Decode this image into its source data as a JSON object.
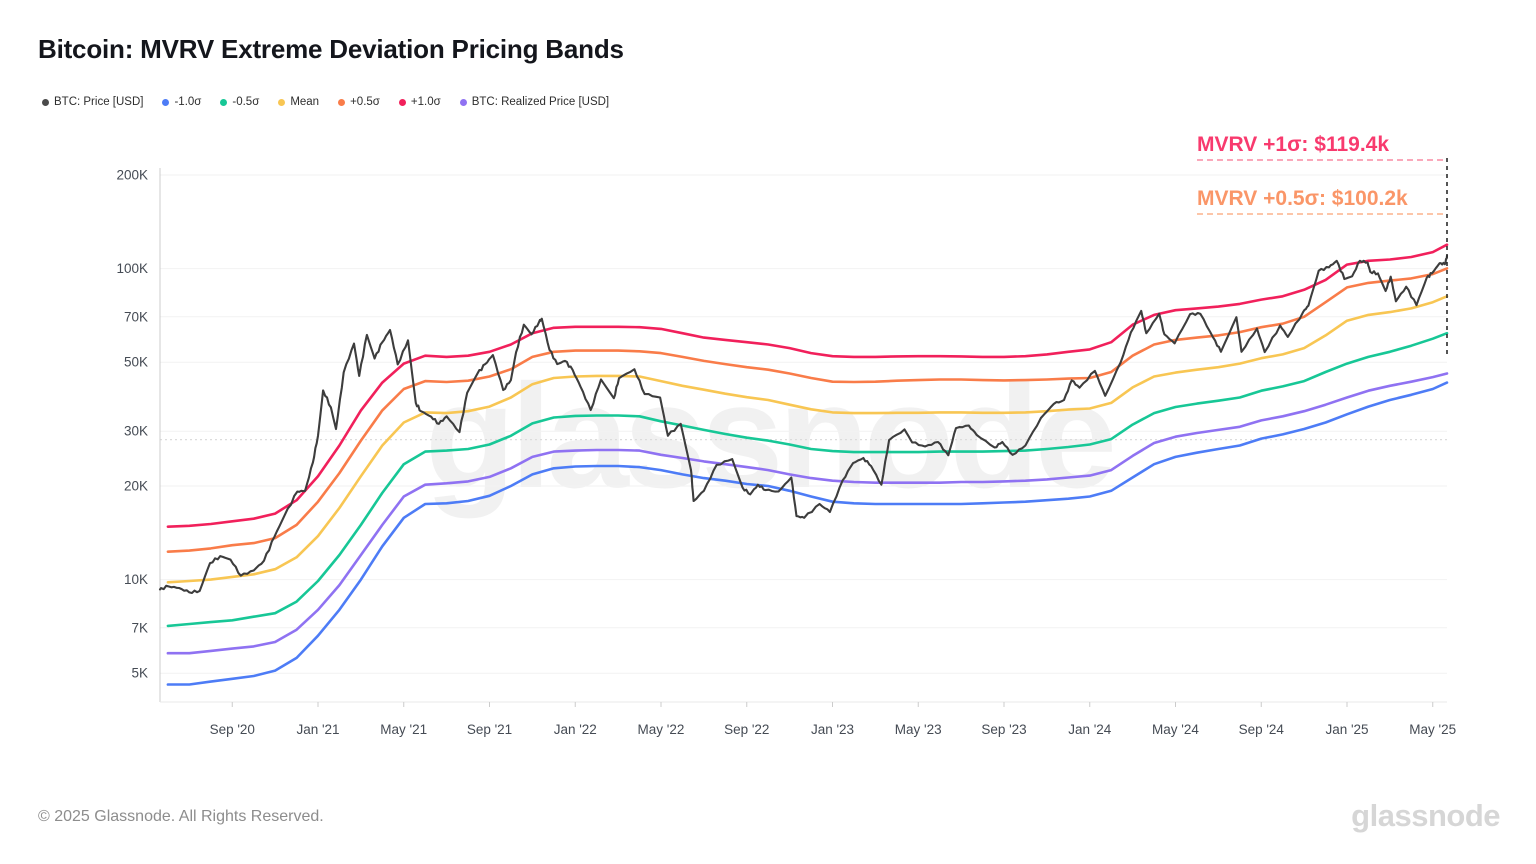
{
  "title": "Bitcoin: MVRV Extreme Deviation Pricing Bands",
  "watermark": "glassnode",
  "legend": [
    {
      "label": "BTC: Price [USD]",
      "color": "#4a4a4a"
    },
    {
      "label": "-1.0σ",
      "color": "#4d7cf6"
    },
    {
      "label": "-0.5σ",
      "color": "#17c796"
    },
    {
      "label": "Mean",
      "color": "#f8c653"
    },
    {
      "label": "+0.5σ",
      "color": "#f97c49"
    },
    {
      "label": "+1.0σ",
      "color": "#f1205b"
    },
    {
      "label": "BTC: Realized Price [USD]",
      "color": "#8f72f2"
    }
  ],
  "annotations": {
    "sigma1": {
      "text": "MVRV +1σ: $119.4k",
      "color": "#f83a6e",
      "dash_color": "#f88ca4",
      "value_k": 119.4
    },
    "sigma05": {
      "text": "MVRV +0.5σ: $100.2k",
      "color": "#fa9668",
      "dash_color": "#fbb28c",
      "value_k": 100.2
    }
  },
  "footer": {
    "copyright": "© 2025 Glassnode. All Rights Reserved.",
    "logo": "glassnode"
  },
  "chart_data": {
    "type": "line",
    "y_scale": "log",
    "y_unit": "USD (thousands)",
    "x_unit": "decimal_year",
    "xlim": [
      2020.386,
      2025.389
    ],
    "ylim_k": [
      3.9,
      210
    ],
    "grid": "horizontal-only",
    "dotted_gridline_k": 28.2,
    "y_ticks": [
      {
        "label": "200K",
        "value": 200
      },
      {
        "label": "100K",
        "value": 100
      },
      {
        "label": "70K",
        "value": 70
      },
      {
        "label": "50K",
        "value": 50
      },
      {
        "label": "30K",
        "value": 30
      },
      {
        "label": "20K",
        "value": 20
      },
      {
        "label": "10K",
        "value": 10
      },
      {
        "label": "7K",
        "value": 7
      },
      {
        "label": "5K",
        "value": 5
      }
    ],
    "x_ticks": [
      {
        "label": "Sep '20",
        "t": 2020.6667
      },
      {
        "label": "Jan '21",
        "t": 2021.0
      },
      {
        "label": "May '21",
        "t": 2021.3333
      },
      {
        "label": "Sep '21",
        "t": 2021.6667
      },
      {
        "label": "Jan '22",
        "t": 2022.0
      },
      {
        "label": "May '22",
        "t": 2022.3333
      },
      {
        "label": "Sep '22",
        "t": 2022.6667
      },
      {
        "label": "Jan '23",
        "t": 2023.0
      },
      {
        "label": "May '23",
        "t": 2023.3333
      },
      {
        "label": "Sep '23",
        "t": 2023.6667
      },
      {
        "label": "Jan '24",
        "t": 2024.0
      },
      {
        "label": "May '24",
        "t": 2024.3333
      },
      {
        "label": "Sep '24",
        "t": 2024.6667
      },
      {
        "label": "Jan '25",
        "t": 2025.0
      },
      {
        "label": "May '25",
        "t": 2025.3333
      }
    ],
    "bands_sampling": {
      "start": 2020.4167,
      "step": 0.0833333,
      "note": "monthly Jun 2020 - May 2025 plus final value at right edge"
    },
    "series": [
      {
        "name": "-1.0σ",
        "color": "#4d7cf6",
        "width": 2.6,
        "start": 2020.4167,
        "step": 0.0833333,
        "values": [
          4.6,
          4.6,
          4.7,
          4.8,
          4.9,
          5.1,
          5.6,
          6.6,
          8.0,
          10.0,
          12.8,
          15.8,
          17.5,
          17.6,
          17.9,
          18.6,
          20.0,
          21.8,
          22.8,
          23.1,
          23.2,
          23.2,
          23.0,
          22.5,
          21.8,
          21.2,
          20.8,
          20.3,
          20.0,
          19.3,
          18.5,
          17.8,
          17.6,
          17.5,
          17.5,
          17.5,
          17.5,
          17.5,
          17.6,
          17.7,
          17.8,
          18.0,
          18.2,
          18.5,
          19.3,
          21.3,
          23.5,
          24.8,
          25.6,
          26.3,
          27.0,
          28.4,
          29.3,
          30.5,
          32.0,
          34.0,
          36.0,
          37.8,
          39.3,
          41.0,
          43.0
        ]
      },
      {
        "name": "BTC: Realized Price [USD]",
        "color": "#8f72f2",
        "width": 2.6,
        "start": 2020.4167,
        "step": 0.0833333,
        "values": [
          5.8,
          5.8,
          5.9,
          6.0,
          6.1,
          6.3,
          6.9,
          8.0,
          9.6,
          12.0,
          15.0,
          18.5,
          20.2,
          20.4,
          20.7,
          21.4,
          22.8,
          24.8,
          25.8,
          26.0,
          26.1,
          26.1,
          26.0,
          25.2,
          24.6,
          24.0,
          23.5,
          23.0,
          22.5,
          21.8,
          21.2,
          20.8,
          20.6,
          20.5,
          20.5,
          20.5,
          20.5,
          20.6,
          20.6,
          20.7,
          20.8,
          21.0,
          21.3,
          21.6,
          22.5,
          25.0,
          27.5,
          28.8,
          29.6,
          30.3,
          31.0,
          32.5,
          33.5,
          34.8,
          36.5,
          38.5,
          40.5,
          42.0,
          43.3,
          44.8,
          46.0
        ]
      },
      {
        "name": "-0.5σ",
        "color": "#17c796",
        "width": 2.6,
        "start": 2020.4167,
        "step": 0.0833333,
        "values": [
          7.1,
          7.2,
          7.3,
          7.4,
          7.6,
          7.8,
          8.5,
          9.9,
          12.0,
          15.0,
          19.0,
          23.5,
          25.8,
          26.0,
          26.3,
          27.2,
          29.0,
          31.8,
          33.2,
          33.6,
          33.7,
          33.7,
          33.5,
          32.3,
          31.3,
          30.3,
          29.4,
          28.6,
          28.0,
          27.2,
          26.3,
          25.9,
          25.7,
          25.7,
          25.7,
          25.7,
          25.8,
          25.8,
          25.8,
          25.9,
          26.0,
          26.3,
          26.7,
          27.2,
          28.3,
          31.5,
          34.3,
          35.9,
          36.8,
          37.6,
          38.5,
          40.5,
          41.8,
          43.5,
          46.5,
          49.5,
          52.0,
          54.0,
          56.5,
          59.5,
          62.0
        ]
      },
      {
        "name": "Mean",
        "color": "#f8c653",
        "width": 2.6,
        "start": 2020.4167,
        "step": 0.0833333,
        "values": [
          9.8,
          9.9,
          10.0,
          10.2,
          10.4,
          10.8,
          11.8,
          13.8,
          17.0,
          21.5,
          27.0,
          32.0,
          34.5,
          34.3,
          34.8,
          36.0,
          38.5,
          42.5,
          44.5,
          45.0,
          45.2,
          45.2,
          45.0,
          43.5,
          42.0,
          40.8,
          39.6,
          38.6,
          37.8,
          36.5,
          35.3,
          34.5,
          34.3,
          34.3,
          34.4,
          34.4,
          34.5,
          34.5,
          34.4,
          34.4,
          34.5,
          34.8,
          35.2,
          35.5,
          37.0,
          41.5,
          45.0,
          46.3,
          47.3,
          48.2,
          49.5,
          51.5,
          53.0,
          55.5,
          61.0,
          68.0,
          71.0,
          72.5,
          74.5,
          78.0,
          81.5
        ]
      },
      {
        "name": "+0.5σ",
        "color": "#f97c49",
        "width": 2.6,
        "start": 2020.4167,
        "step": 0.0833333,
        "values": [
          12.3,
          12.4,
          12.6,
          12.9,
          13.1,
          13.6,
          15.0,
          17.8,
          22.0,
          28.0,
          35.0,
          41.0,
          43.5,
          43.2,
          43.6,
          45.0,
          47.5,
          52.0,
          54.0,
          54.5,
          54.5,
          54.5,
          54.2,
          53.5,
          52.0,
          50.5,
          49.3,
          48.2,
          47.3,
          46.0,
          44.5,
          43.3,
          43.2,
          43.3,
          43.6,
          43.8,
          44.0,
          44.0,
          43.8,
          43.7,
          43.8,
          44.0,
          44.3,
          44.5,
          46.5,
          52.5,
          57.0,
          59.0,
          60.0,
          61.0,
          62.5,
          64.8,
          66.5,
          70.0,
          78.0,
          87.0,
          90.0,
          91.5,
          93.0,
          96.0,
          100.2
        ]
      },
      {
        "name": "+1.0σ",
        "color": "#f1205b",
        "width": 2.6,
        "start": 2020.4167,
        "step": 0.0833333,
        "values": [
          14.8,
          14.9,
          15.1,
          15.4,
          15.7,
          16.3,
          18.0,
          21.5,
          27.0,
          35.0,
          43.0,
          49.5,
          52.5,
          52.0,
          52.5,
          54.0,
          57.0,
          62.0,
          64.5,
          65.0,
          65.0,
          65.0,
          64.8,
          64.0,
          62.0,
          60.0,
          59.0,
          58.0,
          57.0,
          55.5,
          53.5,
          52.3,
          52.0,
          52.0,
          52.2,
          52.3,
          52.3,
          52.2,
          52.0,
          52.0,
          52.3,
          53.0,
          54.0,
          55.0,
          58.0,
          66.0,
          71.0,
          73.5,
          74.5,
          75.5,
          77.0,
          79.5,
          81.5,
          85.5,
          92.0,
          103.0,
          106.0,
          107.0,
          109.0,
          113.0,
          119.4
        ]
      },
      {
        "name": "BTC: Price [USD]",
        "color": "#3d3d3d",
        "width": 2.1,
        "jagged": true,
        "points": [
          [
            2020.38,
            9.3
          ],
          [
            2020.42,
            9.5
          ],
          [
            2020.46,
            9.4
          ],
          [
            2020.5,
            9.1
          ],
          [
            2020.54,
            9.2
          ],
          [
            2020.58,
            11.3
          ],
          [
            2020.62,
            11.9
          ],
          [
            2020.66,
            11.6
          ],
          [
            2020.7,
            10.3
          ],
          [
            2020.75,
            10.7
          ],
          [
            2020.79,
            11.5
          ],
          [
            2020.83,
            13.7
          ],
          [
            2020.87,
            16.1
          ],
          [
            2020.92,
            19.2
          ],
          [
            2020.95,
            19.3
          ],
          [
            2020.98,
            23.8
          ],
          [
            2021.0,
            29.0
          ],
          [
            2021.02,
            40.6
          ],
          [
            2021.05,
            35.8
          ],
          [
            2021.07,
            30.5
          ],
          [
            2021.1,
            46.4
          ],
          [
            2021.14,
            57.4
          ],
          [
            2021.16,
            45.2
          ],
          [
            2021.19,
            61.2
          ],
          [
            2021.22,
            51.4
          ],
          [
            2021.25,
            58.0
          ],
          [
            2021.28,
            63.5
          ],
          [
            2021.31,
            49.2
          ],
          [
            2021.35,
            58.8
          ],
          [
            2021.38,
            37.0
          ],
          [
            2021.4,
            34.8
          ],
          [
            2021.44,
            33.4
          ],
          [
            2021.47,
            31.7
          ],
          [
            2021.5,
            33.5
          ],
          [
            2021.55,
            29.8
          ],
          [
            2021.58,
            39.9
          ],
          [
            2021.62,
            46.0
          ],
          [
            2021.65,
            49.3
          ],
          [
            2021.68,
            52.7
          ],
          [
            2021.72,
            40.7
          ],
          [
            2021.75,
            43.8
          ],
          [
            2021.77,
            53.9
          ],
          [
            2021.8,
            66.0
          ],
          [
            2021.83,
            61.5
          ],
          [
            2021.86,
            67.5
          ],
          [
            2021.87,
            69.0
          ],
          [
            2021.9,
            54.8
          ],
          [
            2021.93,
            49.3
          ],
          [
            2021.96,
            50.5
          ],
          [
            2021.99,
            47.2
          ],
          [
            2022.02,
            41.8
          ],
          [
            2022.06,
            35.1
          ],
          [
            2022.1,
            44.0
          ],
          [
            2022.15,
            38.3
          ],
          [
            2022.17,
            44.4
          ],
          [
            2022.23,
            47.5
          ],
          [
            2022.27,
            39.5
          ],
          [
            2022.33,
            38.5
          ],
          [
            2022.36,
            29.0
          ],
          [
            2022.41,
            31.7
          ],
          [
            2022.45,
            22.5
          ],
          [
            2022.46,
            17.9
          ],
          [
            2022.5,
            19.3
          ],
          [
            2022.55,
            23.4
          ],
          [
            2022.61,
            24.4
          ],
          [
            2022.65,
            19.8
          ],
          [
            2022.68,
            18.8
          ],
          [
            2022.71,
            20.2
          ],
          [
            2022.74,
            19.4
          ],
          [
            2022.79,
            19.2
          ],
          [
            2022.84,
            21.3
          ],
          [
            2022.86,
            16.0
          ],
          [
            2022.89,
            15.8
          ],
          [
            2022.95,
            17.5
          ],
          [
            2022.99,
            16.5
          ],
          [
            2023.04,
            20.9
          ],
          [
            2023.08,
            23.7
          ],
          [
            2023.12,
            24.6
          ],
          [
            2023.15,
            23.2
          ],
          [
            2023.19,
            20.2
          ],
          [
            2023.22,
            28.1
          ],
          [
            2023.28,
            30.4
          ],
          [
            2023.31,
            27.6
          ],
          [
            2023.36,
            26.8
          ],
          [
            2023.41,
            27.7
          ],
          [
            2023.45,
            25.1
          ],
          [
            2023.48,
            30.7
          ],
          [
            2023.53,
            31.3
          ],
          [
            2023.56,
            29.2
          ],
          [
            2023.63,
            26.6
          ],
          [
            2023.66,
            27.7
          ],
          [
            2023.7,
            25.2
          ],
          [
            2023.75,
            27.0
          ],
          [
            2023.81,
            33.1
          ],
          [
            2023.86,
            36.7
          ],
          [
            2023.9,
            37.8
          ],
          [
            2023.93,
            43.7
          ],
          [
            2023.96,
            41.4
          ],
          [
            2024.02,
            46.9
          ],
          [
            2024.06,
            39.0
          ],
          [
            2024.12,
            49.9
          ],
          [
            2024.16,
            62.4
          ],
          [
            2024.2,
            73.1
          ],
          [
            2024.22,
            62.0
          ],
          [
            2024.27,
            71.6
          ],
          [
            2024.29,
            61.5
          ],
          [
            2024.33,
            57.5
          ],
          [
            2024.39,
            71.4
          ],
          [
            2024.43,
            71.5
          ],
          [
            2024.48,
            60.0
          ],
          [
            2024.51,
            54.0
          ],
          [
            2024.57,
            69.8
          ],
          [
            2024.59,
            54.0
          ],
          [
            2024.65,
            64.2
          ],
          [
            2024.68,
            53.9
          ],
          [
            2024.74,
            65.7
          ],
          [
            2024.77,
            60.3
          ],
          [
            2024.83,
            72.7
          ],
          [
            2024.85,
            76.0
          ],
          [
            2024.89,
            98.5
          ],
          [
            2024.93,
            101.0
          ],
          [
            2024.96,
            106.0
          ],
          [
            2024.99,
            92.6
          ],
          [
            2025.02,
            94.5
          ],
          [
            2025.05,
            106.0
          ],
          [
            2025.08,
            104.7
          ],
          [
            2025.09,
            97.7
          ],
          [
            2025.12,
            96.5
          ],
          [
            2025.15,
            84.7
          ],
          [
            2025.17,
            94.2
          ],
          [
            2025.19,
            78.5
          ],
          [
            2025.23,
            87.5
          ],
          [
            2025.27,
            76.3
          ],
          [
            2025.31,
            93.4
          ],
          [
            2025.33,
            96.5
          ],
          [
            2025.36,
            104.1
          ],
          [
            2025.38,
            103.3
          ],
          [
            2025.39,
            110.0
          ]
        ]
      }
    ]
  }
}
